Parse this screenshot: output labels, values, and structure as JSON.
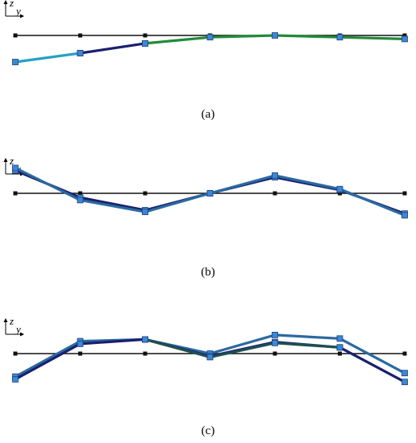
{
  "axes": {
    "z": "z",
    "y": "y"
  },
  "captions": {
    "a": "(a)",
    "b": "(b)",
    "c": "(c)"
  },
  "colors": {
    "reference": "#111111",
    "node_fill": "#3d87d6",
    "node_stroke": "#1d3f7a",
    "navy": "#1a1f6e",
    "cyan": "#27a0c8",
    "green": "#238a3a",
    "mid_blue": "#2a6aa0",
    "dark_teal": "#1f4f4f"
  },
  "chart_data": [
    {
      "panel": "a",
      "type": "line",
      "node_count": 7,
      "series": [
        {
          "color": "cyan",
          "values": [
            -0.3,
            -0.2,
            null,
            null,
            null,
            null,
            null
          ]
        },
        {
          "color": "navy",
          "values": [
            null,
            -0.2,
            -0.09,
            null,
            null,
            null,
            null
          ]
        },
        {
          "color": "green",
          "values": [
            null,
            null,
            -0.09,
            -0.02,
            0.0,
            -0.02,
            -0.04
          ]
        }
      ]
    },
    {
      "panel": "b",
      "type": "line",
      "node_count": 7,
      "series": [
        {
          "color": "navy",
          "values": [
            0.27,
            -0.05,
            -0.2,
            0.0,
            0.19,
            0.04,
            -0.24
          ]
        },
        {
          "color": "mid_blue",
          "values": [
            0.3,
            -0.08,
            -0.22,
            0.0,
            0.21,
            0.05,
            -0.26
          ]
        }
      ]
    },
    {
      "panel": "c",
      "type": "line",
      "node_count": 7,
      "series": [
        {
          "color": "mid_blue",
          "values": [
            -0.26,
            0.14,
            0.16,
            0.0,
            0.21,
            0.17,
            -0.22
          ]
        },
        {
          "color": "navy",
          "values": [
            -0.29,
            0.11,
            0.16,
            -0.03,
            0.13,
            0.07,
            -0.32
          ]
        },
        {
          "color": "dark_teal",
          "values": [
            null,
            null,
            0.16,
            -0.04,
            0.12,
            0.07,
            null
          ]
        }
      ]
    }
  ]
}
